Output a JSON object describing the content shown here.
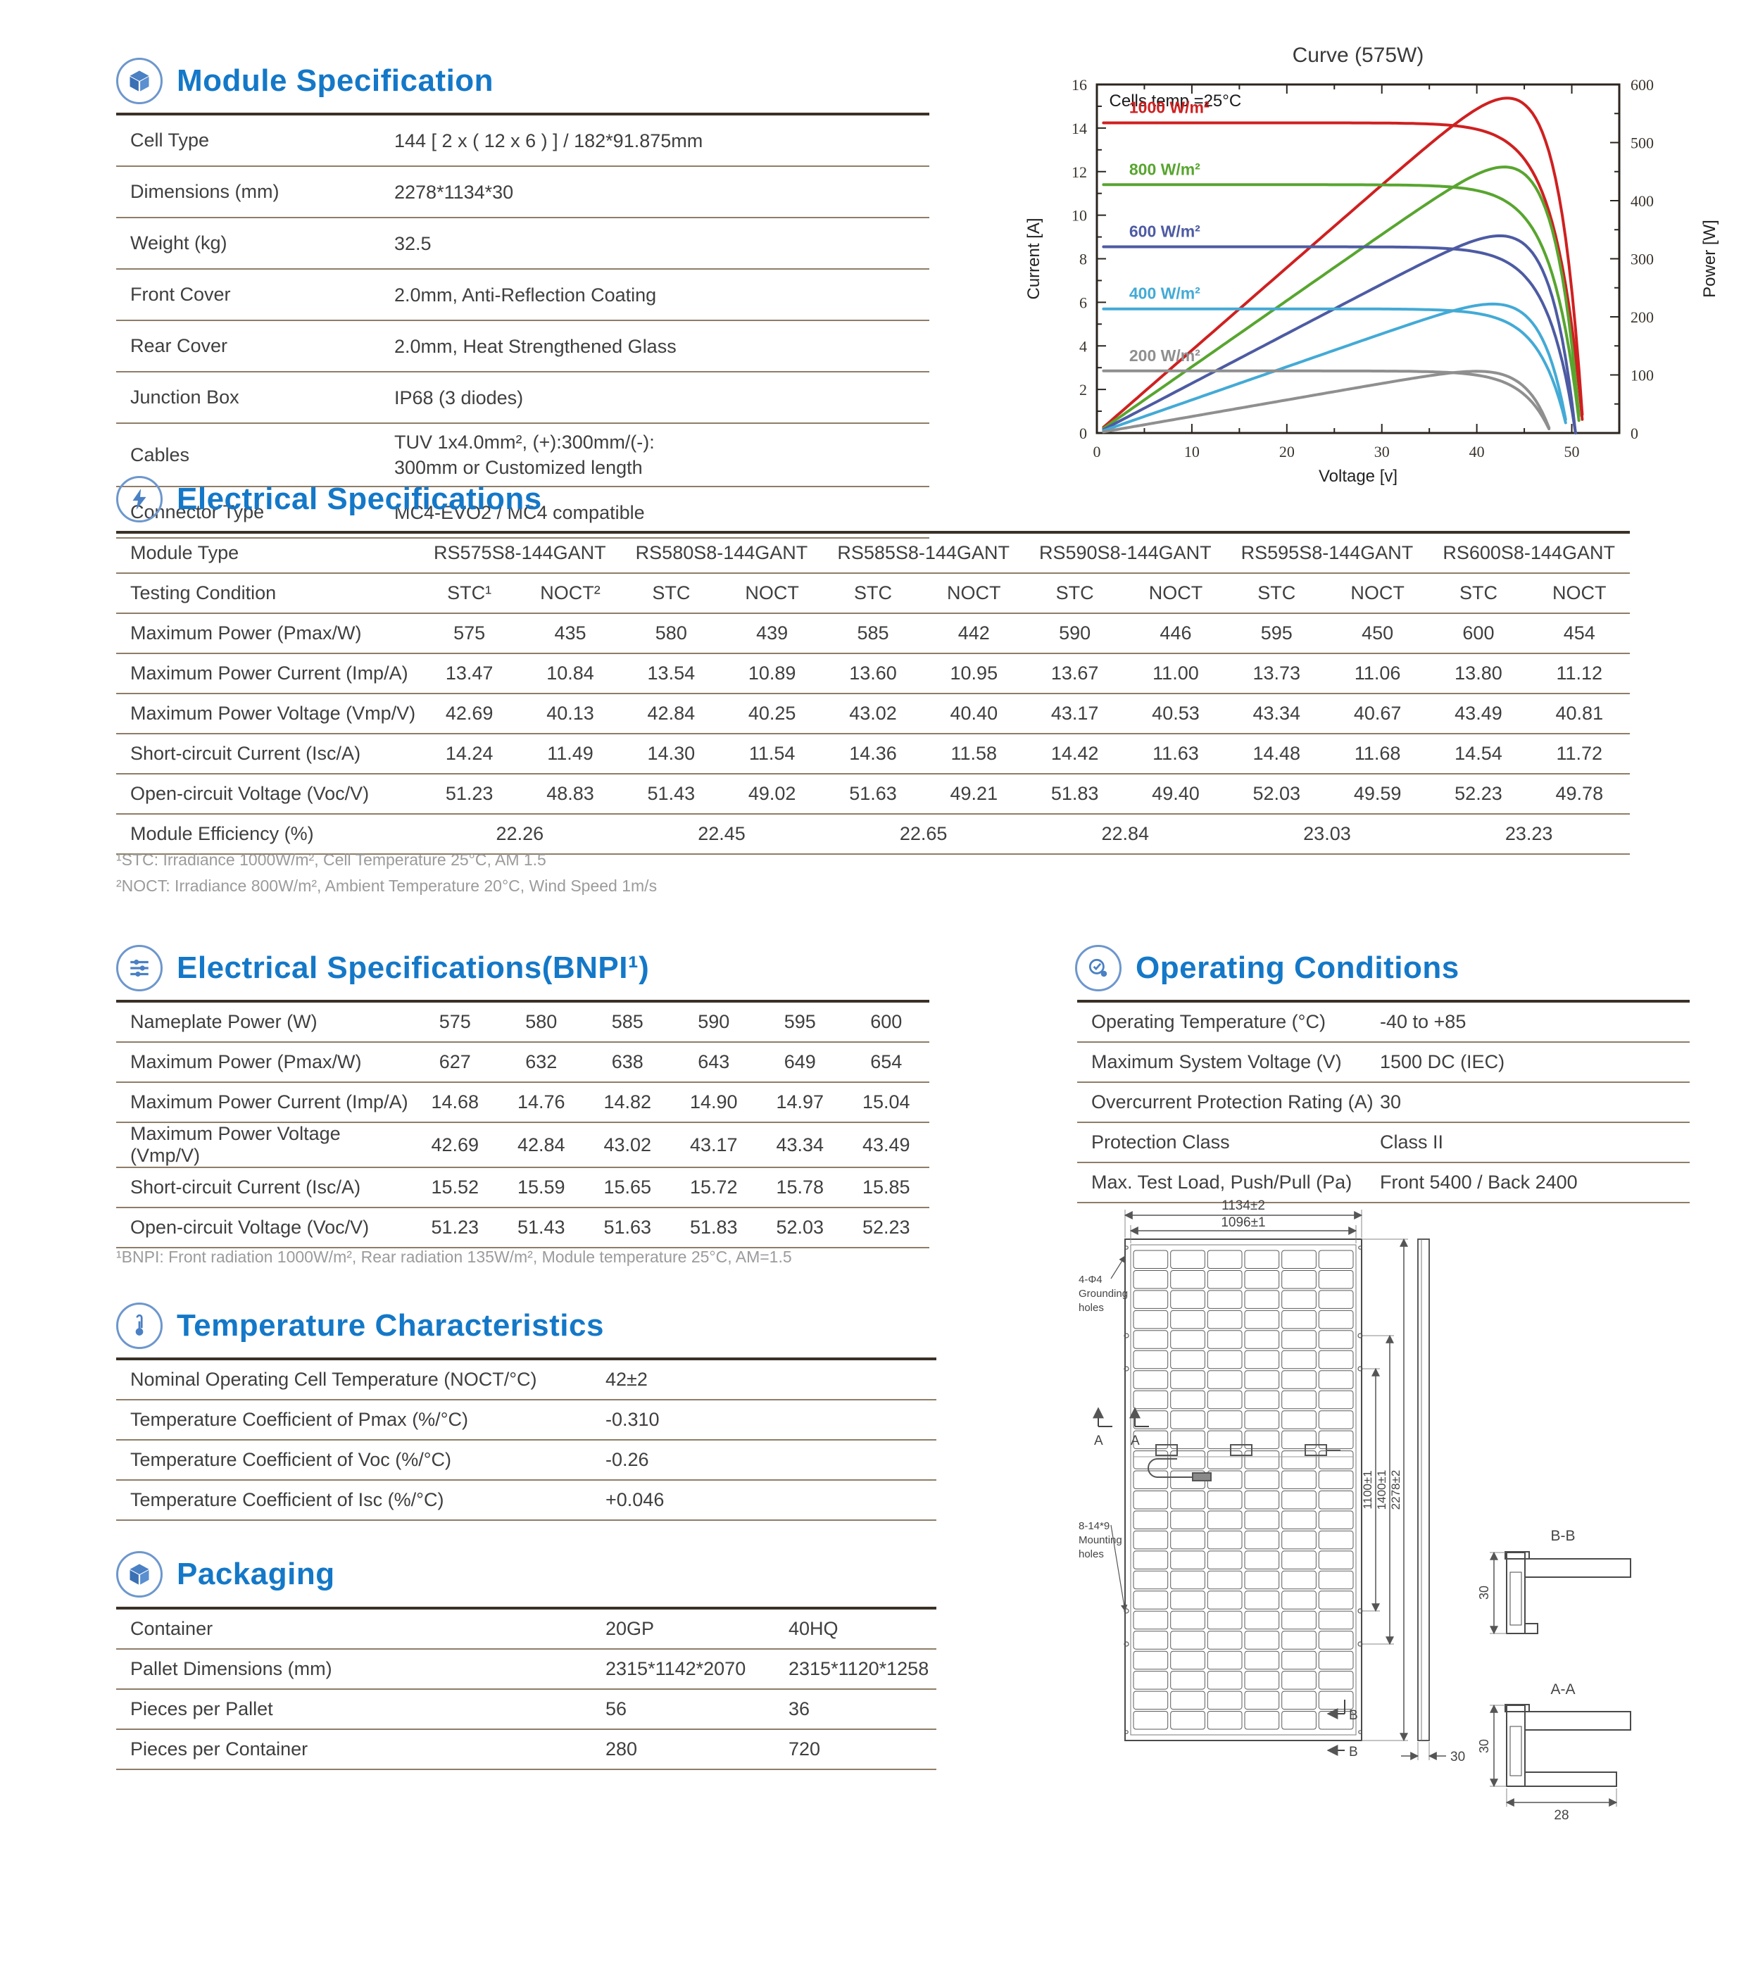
{
  "sections": {
    "module_spec": {
      "title": "Module Specification",
      "rows": [
        {
          "label": "Cell Type",
          "values": [
            "144 [ 2 x ( 12 x 6 ) ] / 182*91.875mm"
          ]
        },
        {
          "label": "Dimensions (mm)",
          "values": [
            "2278*1134*30"
          ]
        },
        {
          "label": "Weight (kg)",
          "values": [
            "32.5"
          ]
        },
        {
          "label": "Front Cover",
          "values": [
            "2.0mm, Anti-Reflection Coating"
          ]
        },
        {
          "label": "Rear Cover",
          "values": [
            "2.0mm, Heat Strengthened Glass"
          ]
        },
        {
          "label": "Junction Box",
          "values": [
            "IP68 (3 diodes)"
          ]
        },
        {
          "label": "Cables",
          "values": [
            "TUV 1x4.0mm², (+):300mm/(-):\n300mm or Customized length"
          ]
        },
        {
          "label": "Connector Type",
          "values": [
            "MC4-EVO2 / MC4 compatible"
          ]
        }
      ]
    },
    "electrical": {
      "title": "Electrical Specifications",
      "module_type_label": "Module Type",
      "testing_condition_label": "Testing Condition",
      "modules": [
        "RS575S8-144GANT",
        "RS580S8-144GANT",
        "RS585S8-144GANT",
        "RS590S8-144GANT",
        "RS595S8-144GANT",
        "RS600S8-144GANT"
      ],
      "conditions_first": [
        "STC¹",
        "NOCT²"
      ],
      "conditions": [
        "STC",
        "NOCT"
      ],
      "rows": [
        {
          "label": "Maximum Power (Pmax/W)",
          "values": [
            "575",
            "435",
            "580",
            "439",
            "585",
            "442",
            "590",
            "446",
            "595",
            "450",
            "600",
            "454"
          ]
        },
        {
          "label": "Maximum Power Current (Imp/A)",
          "values": [
            "13.47",
            "10.84",
            "13.54",
            "10.89",
            "13.60",
            "10.95",
            "13.67",
            "11.00",
            "13.73",
            "11.06",
            "13.80",
            "11.12"
          ]
        },
        {
          "label": "Maximum Power Voltage (Vmp/V)",
          "values": [
            "42.69",
            "40.13",
            "42.84",
            "40.25",
            "43.02",
            "40.40",
            "43.17",
            "40.53",
            "43.34",
            "40.67",
            "43.49",
            "40.81"
          ]
        },
        {
          "label": "Short-circuit Current (Isc/A)",
          "values": [
            "14.24",
            "11.49",
            "14.30",
            "11.54",
            "14.36",
            "11.58",
            "14.42",
            "11.63",
            "14.48",
            "11.68",
            "14.54",
            "11.72"
          ]
        },
        {
          "label": "Open-circuit Voltage (Voc/V)",
          "values": [
            "51.23",
            "48.83",
            "51.43",
            "49.02",
            "51.63",
            "49.21",
            "51.83",
            "49.40",
            "52.03",
            "49.59",
            "52.23",
            "49.78"
          ]
        }
      ],
      "efficiency_row": {
        "label": "Module Efficiency (%)",
        "values": [
          "22.26",
          "22.45",
          "22.65",
          "22.84",
          "23.03",
          "23.23"
        ]
      },
      "footnote1": "¹STC: Irradiance 1000W/m², Cell Temperature 25°C, AM 1.5",
      "footnote2": "²NOCT: Irradiance 800W/m², Ambient Temperature 20°C, Wind Speed 1m/s"
    },
    "bnpi": {
      "title": "Electrical Specifications(BNPI¹)",
      "rows": [
        {
          "label": "Nameplate Power (W)",
          "values": [
            "575",
            "580",
            "585",
            "590",
            "595",
            "600"
          ]
        },
        {
          "label": "Maximum Power (Pmax/W)",
          "values": [
            "627",
            "632",
            "638",
            "643",
            "649",
            "654"
          ]
        },
        {
          "label": "Maximum Power Current (Imp/A)",
          "values": [
            "14.68",
            "14.76",
            "14.82",
            "14.90",
            "14.97",
            "15.04"
          ]
        },
        {
          "label": "Maximum Power Voltage (Vmp/V)",
          "values": [
            "42.69",
            "42.84",
            "43.02",
            "43.17",
            "43.34",
            "43.49"
          ]
        },
        {
          "label": "Short-circuit Current (Isc/A)",
          "values": [
            "15.52",
            "15.59",
            "15.65",
            "15.72",
            "15.78",
            "15.85"
          ]
        },
        {
          "label": "Open-circuit Voltage (Voc/V)",
          "values": [
            "51.23",
            "51.43",
            "51.63",
            "51.83",
            "52.03",
            "52.23"
          ]
        }
      ],
      "footnote": "¹BNPI: Front radiation 1000W/m², Rear radiation 135W/m², Module temperature 25°C, AM=1.5"
    },
    "operating": {
      "title": "Operating Conditions",
      "rows": [
        {
          "label": "Operating Temperature (°C)",
          "values": [
            "-40 to +85"
          ]
        },
        {
          "label": "Maximum System Voltage (V)",
          "values": [
            "1500 DC (IEC)"
          ]
        },
        {
          "label": "Overcurrent Protection Rating (A)",
          "values": [
            "30"
          ]
        },
        {
          "label": "Protection Class",
          "values": [
            "Class II"
          ]
        },
        {
          "label": "Max. Test Load, Push/Pull (Pa)",
          "values": [
            "Front 5400 / Back 2400"
          ]
        }
      ]
    },
    "temperature": {
      "title": "Temperature Characteristics",
      "rows": [
        {
          "label": "Nominal Operating Cell Temperature (NOCT/°C)",
          "values": [
            "42±2"
          ]
        },
        {
          "label": "Temperature Coefficient of Pmax (%/°C)",
          "values": [
            "-0.310"
          ]
        },
        {
          "label": "Temperature Coefficient of Voc (%/°C)",
          "values": [
            "-0.26"
          ]
        },
        {
          "label": "Temperature Coefficient of Isc (%/°C)",
          "values": [
            "+0.046"
          ]
        }
      ]
    },
    "packaging": {
      "title": "Packaging",
      "rows": [
        {
          "label": "Container",
          "values": [
            "20GP",
            "40HQ"
          ]
        },
        {
          "label": "Pallet Dimensions (mm)",
          "values": [
            "2315*1142*2070",
            "2315*1120*1258"
          ]
        },
        {
          "label": "Pieces per Pallet",
          "values": [
            "56",
            "36"
          ]
        },
        {
          "label": "Pieces per Container",
          "values": [
            "280",
            "720"
          ]
        }
      ]
    }
  },
  "chart_data": {
    "type": "line",
    "title": "Curve (575W)",
    "xlabel": "Voltage [v]",
    "ylabel_left": "Current [A]",
    "ylabel_right": "Power [W]",
    "annotation": "Cells temp.=25°C",
    "xlim": [
      0,
      55
    ],
    "ylim_left": [
      0,
      16
    ],
    "ylim_right": [
      0,
      600
    ],
    "x_ticks": [
      0,
      10,
      20,
      30,
      40,
      50
    ],
    "y_ticks_left": [
      0,
      2,
      4,
      6,
      8,
      10,
      12,
      14,
      16
    ],
    "y_ticks_right": [
      0,
      100,
      200,
      300,
      400,
      500,
      600
    ],
    "grid": false,
    "series": [
      {
        "label": "1000 W/m²",
        "color": "#cf2020",
        "isc": 14.24,
        "voc": 51.23,
        "vmp": 42.69,
        "imp": 13.47,
        "pmax": 575
      },
      {
        "label": "800 W/m²",
        "color": "#58a52f",
        "isc": 11.4,
        "voc": 50.9,
        "vmp": 42.5,
        "imp": 10.8,
        "pmax": 460
      },
      {
        "label": "600 W/m²",
        "color": "#4d5ba3",
        "isc": 8.55,
        "voc": 50.4,
        "vmp": 42.1,
        "imp": 8.15,
        "pmax": 345
      },
      {
        "label": "400 W/m²",
        "color": "#43aad6",
        "isc": 5.7,
        "voc": 49.6,
        "vmp": 41.6,
        "imp": 5.45,
        "pmax": 228
      },
      {
        "label": "200 W/m²",
        "color": "#8f8f8f",
        "isc": 2.85,
        "voc": 47.8,
        "vmp": 40.2,
        "imp": 2.7,
        "pmax": 110
      }
    ]
  },
  "drawing": {
    "dim_top": "1134±2",
    "dim_top2": "1096±1",
    "dim_h": "2278±2",
    "dim_h2": "1400±1",
    "dim_h3": "1100±1",
    "thickness": "30",
    "grounding_l1": "4-Φ4",
    "grounding_l2": "Grounding",
    "grounding_l3": "holes",
    "mounting_l1": "8-14*9",
    "mounting_l2": "Mounting",
    "mounting_l3": "holes",
    "marker_a": "A",
    "marker_b": "B",
    "section_bb": "B-B",
    "section_aa": "A-A",
    "bb_h": "30",
    "aa_h": "30",
    "aa_w": "28"
  }
}
